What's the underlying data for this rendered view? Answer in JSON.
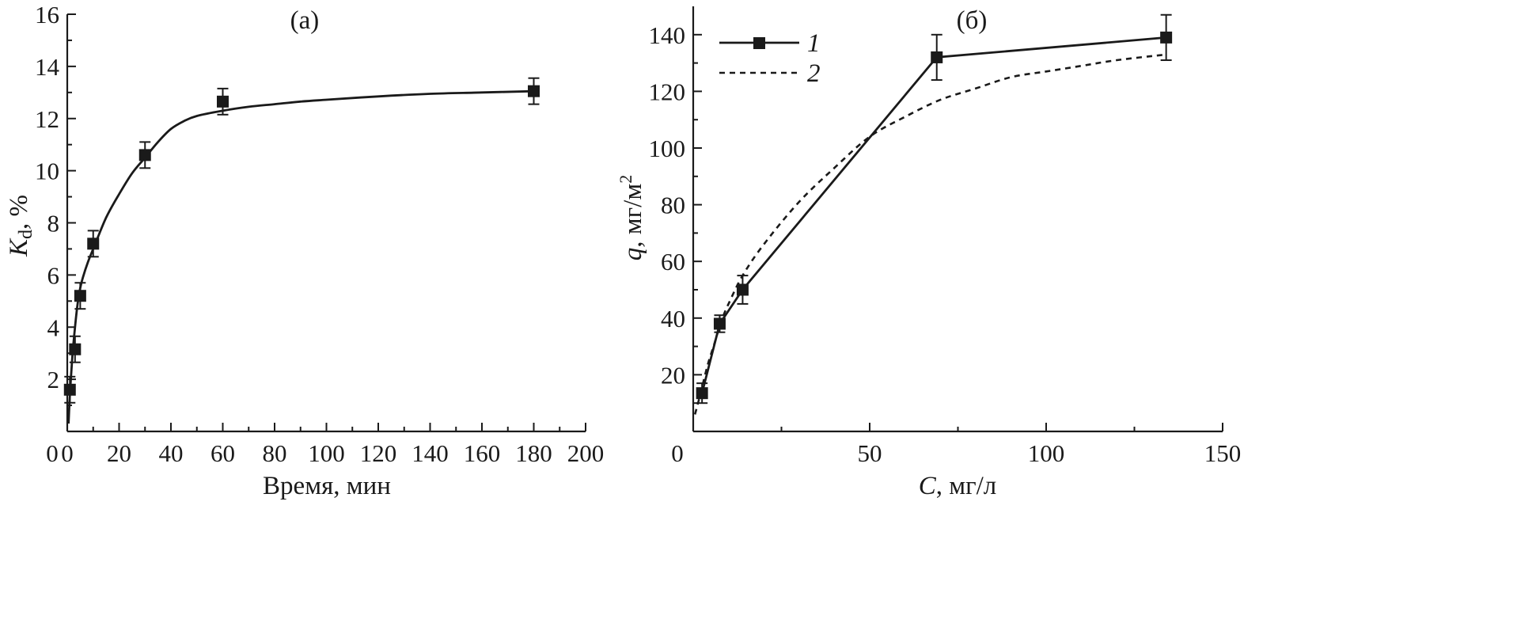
{
  "chart_data": [
    {
      "type": "scatter",
      "panel_label": "(а)",
      "xlabel": "Время, мин",
      "ylabel": {
        "main": "K",
        "sub": "d",
        "suffix": ", %"
      },
      "xlim": [
        0,
        200
      ],
      "ylim": [
        0,
        16
      ],
      "xticks": [
        0,
        20,
        40,
        60,
        80,
        100,
        120,
        140,
        160,
        180,
        200
      ],
      "yticks": [
        2,
        4,
        6,
        8,
        10,
        12,
        14,
        16
      ],
      "x_origin_label": "0",
      "series": [
        {
          "style": "markers-with-error-bars",
          "x": [
            1,
            3,
            5,
            10,
            30,
            60,
            180
          ],
          "y": [
            1.6,
            3.15,
            5.2,
            7.2,
            10.6,
            12.65,
            13.05
          ],
          "err": [
            0.5,
            0.5,
            0.5,
            0.5,
            0.5,
            0.5,
            0.5
          ]
        },
        {
          "style": "smooth-fit-line",
          "x": [
            0.5,
            1,
            2,
            3,
            4,
            5,
            6,
            8,
            10,
            15,
            20,
            25,
            30,
            35,
            40,
            45,
            50,
            60,
            70,
            80,
            90,
            100,
            120,
            140,
            160,
            180
          ],
          "y": [
            0.3,
            1.4,
            2.9,
            4.0,
            4.9,
            5.5,
            5.9,
            6.5,
            7.0,
            8.2,
            9.1,
            9.9,
            10.5,
            11.1,
            11.6,
            11.9,
            12.1,
            12.3,
            12.45,
            12.55,
            12.65,
            12.72,
            12.85,
            12.95,
            13.0,
            13.05
          ]
        }
      ]
    },
    {
      "type": "line",
      "panel_label": "(б)",
      "xlabel": {
        "main": "C",
        "suffix": ", мг/л"
      },
      "ylabel": {
        "main": "q",
        "suffix": ", мг/м",
        "sup": "2"
      },
      "xlim": [
        0,
        150
      ],
      "ylim": [
        0,
        150
      ],
      "xticks": [
        50,
        100,
        150
      ],
      "yticks": [
        20,
        40,
        60,
        80,
        100,
        120,
        140
      ],
      "x_origin_label": "0",
      "series": [
        {
          "name": "1",
          "style": "solid-with-markers",
          "x": [
            2.5,
            7.5,
            14,
            69,
            134
          ],
          "y": [
            13.5,
            38,
            50,
            132,
            139
          ],
          "err": [
            3.5,
            3,
            5,
            8,
            8
          ]
        },
        {
          "name": "2",
          "style": "dashed",
          "x": [
            0.5,
            2,
            4,
            6,
            8,
            10,
            14,
            20,
            30,
            40,
            50,
            60,
            70,
            80,
            90,
            100,
            110,
            120,
            134
          ],
          "y": [
            6,
            13,
            23,
            31,
            39,
            45,
            55,
            66,
            81,
            93,
            104,
            111,
            117,
            121,
            125,
            127,
            129,
            131,
            133
          ]
        }
      ]
    }
  ]
}
